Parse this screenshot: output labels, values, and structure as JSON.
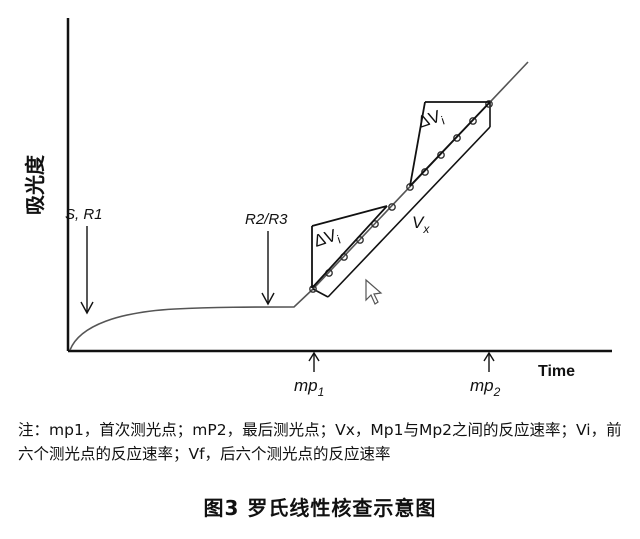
{
  "diagram": {
    "y_axis_label": "吸光度",
    "x_axis_label": "Time",
    "label_s_r1": "S, R1",
    "label_r2_r3": "R2/R3",
    "label_vx": "V",
    "label_vx_sub": "x",
    "label_delta_v": "ΔV",
    "label_delta_sub": "i",
    "label_mp1": "mp",
    "label_mp1_sub": "1",
    "label_mp2": "mp",
    "label_mp2_sub": "2"
  },
  "note": "注：mp1，首次测光点；mP2，最后测光点；Vx，Mp1与Mp2之间的反应速率；Vi，前六个测光点的反应速率；Vf，后六个测光点的反应速率",
  "caption": "图3  罗氏线性核查示意图"
}
